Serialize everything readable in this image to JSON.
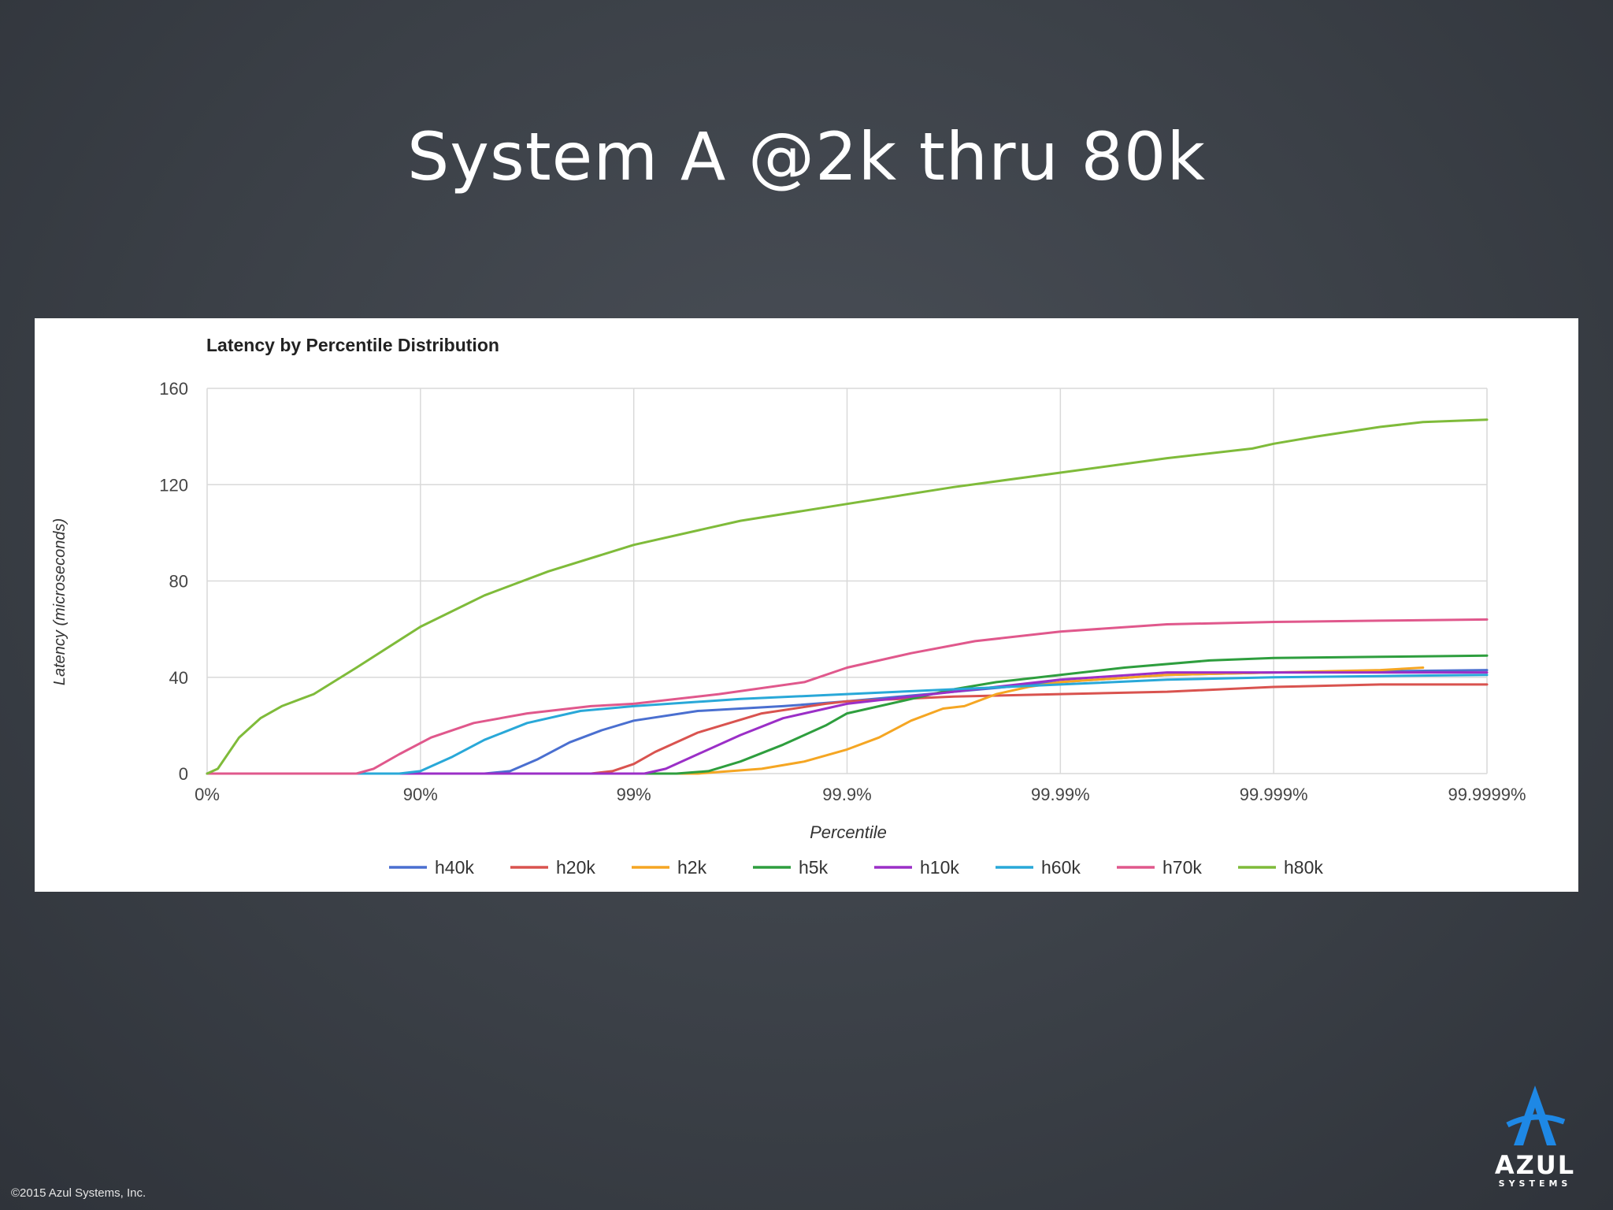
{
  "slide": {
    "title": "System A @2k thru 80k",
    "copyright": "©2015 Azul Systems, Inc.",
    "logo_text": "AZUL",
    "logo_subtext": "SYSTEMS"
  },
  "chart_data": {
    "type": "line",
    "title": "Latency by Percentile Distribution",
    "xlabel": "Percentile",
    "ylabel": "Latency (microseconds)",
    "x_scale": "log-percentile",
    "x_ticks": [
      "0%",
      "90%",
      "99%",
      "99.9%",
      "99.99%",
      "99.999%",
      "99.9999%"
    ],
    "y_ticks": [
      "0",
      "40",
      "80",
      "120",
      "160"
    ],
    "ylim": [
      0,
      160
    ],
    "grid": true,
    "legend_position": "bottom",
    "x_note": "x values given as number of nines (0 = 0%, 1 = 90%, 2 = 99%, 3 = 99.9%, 4 = 99.99%, 5 = 99.999%, 6 = 99.9999%)",
    "series": [
      {
        "name": "h40k",
        "color": "#4a6fd0",
        "x": [
          0,
          1.3,
          1.42,
          1.55,
          1.7,
          1.85,
          2.0,
          2.3,
          2.7,
          3.0,
          3.5,
          4.0,
          4.5,
          5.0,
          5.5,
          6.0
        ],
        "y": [
          0,
          0,
          1,
          6,
          13,
          18,
          22,
          26,
          28,
          30,
          34,
          38,
          41,
          42,
          42.5,
          43
        ]
      },
      {
        "name": "h20k",
        "color": "#d9534f",
        "x": [
          0,
          1.8,
          1.9,
          2.0,
          2.1,
          2.3,
          2.6,
          2.9,
          3.0,
          3.5,
          4.0,
          4.5,
          5.0,
          5.5,
          6.0
        ],
        "y": [
          0,
          0,
          1,
          4,
          9,
          17,
          25,
          29,
          30,
          32,
          33,
          34,
          36,
          37,
          37
        ]
      },
      {
        "name": "h2k",
        "color": "#f5a623",
        "x": [
          0,
          2.3,
          2.6,
          2.8,
          3.0,
          3.15,
          3.3,
          3.45,
          3.55,
          3.7,
          3.85,
          4.0,
          4.5,
          5.0,
          5.5,
          5.7
        ],
        "y": [
          0,
          0,
          2,
          5,
          10,
          15,
          22,
          27,
          28,
          33,
          36,
          38,
          41,
          42,
          43,
          44
        ]
      },
      {
        "name": "h5k",
        "color": "#2e9e3e",
        "x": [
          0,
          2.2,
          2.35,
          2.5,
          2.7,
          2.9,
          3.0,
          3.3,
          3.5,
          3.7,
          4.0,
          4.3,
          4.7,
          5.0,
          5.5,
          6.0
        ],
        "y": [
          0,
          0,
          1,
          5,
          12,
          20,
          25,
          31,
          35,
          38,
          41,
          44,
          47,
          48,
          48.5,
          49
        ]
      },
      {
        "name": "h10k",
        "color": "#9b2fc7",
        "x": [
          0,
          2.05,
          2.15,
          2.3,
          2.5,
          2.7,
          2.9,
          3.0,
          3.3,
          3.6,
          4.0,
          4.5,
          5.0,
          5.5,
          6.0
        ],
        "y": [
          0,
          0,
          2,
          8,
          16,
          23,
          27,
          29,
          32,
          35,
          39,
          42,
          42,
          42,
          42
        ]
      },
      {
        "name": "h60k",
        "color": "#29a8d8",
        "x": [
          0,
          0.9,
          1.0,
          1.15,
          1.3,
          1.5,
          1.75,
          2.0,
          2.5,
          3.0,
          3.5,
          4.0,
          4.5,
          5.0,
          5.5,
          6.0
        ],
        "y": [
          0,
          0,
          1,
          7,
          14,
          21,
          26,
          28,
          31,
          33,
          35,
          37,
          39,
          40,
          40.5,
          41
        ]
      },
      {
        "name": "h70k",
        "color": "#e0588c",
        "x": [
          0,
          0.7,
          0.78,
          0.9,
          1.05,
          1.25,
          1.5,
          1.8,
          2.0,
          2.4,
          2.8,
          3.0,
          3.3,
          3.6,
          4.0,
          4.5,
          5.0,
          5.5,
          6.0
        ],
        "y": [
          0,
          0,
          2,
          8,
          15,
          21,
          25,
          28,
          29,
          33,
          38,
          44,
          50,
          55,
          59,
          62,
          63,
          63.5,
          64
        ]
      },
      {
        "name": "h80k",
        "color": "#7fbb3a",
        "x": [
          0,
          0.05,
          0.15,
          0.25,
          0.35,
          0.5,
          0.7,
          1.0,
          1.3,
          1.6,
          2.0,
          2.5,
          3.0,
          3.5,
          4.0,
          4.5,
          4.9,
          5.0,
          5.2,
          5.5,
          5.7,
          6.0
        ],
        "y": [
          0,
          2,
          15,
          23,
          28,
          33,
          44,
          61,
          74,
          84,
          95,
          105,
          112,
          119,
          125,
          131,
          135,
          137,
          140,
          144,
          146,
          147
        ]
      }
    ]
  }
}
